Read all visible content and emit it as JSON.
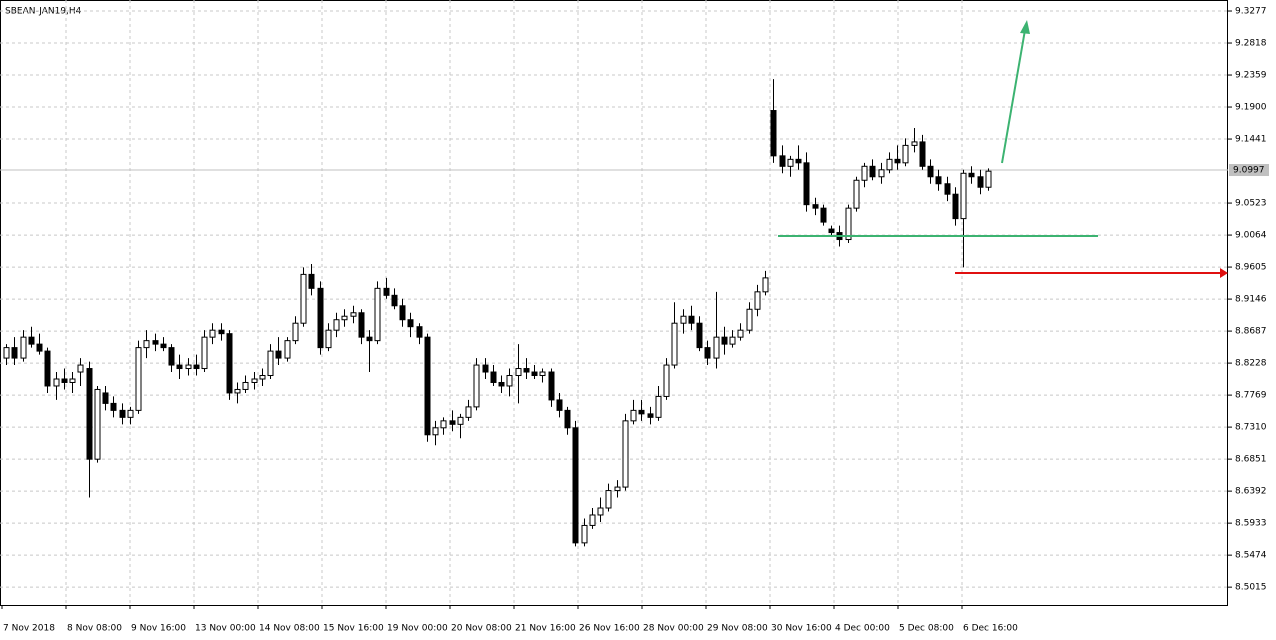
{
  "chart_data": {
    "type": "candlestick",
    "title": "SBEAN-JAN19,H4",
    "x_labels": [
      "7 Nov 2018",
      "8 Nov 08:00",
      "9 Nov 16:00",
      "13 Nov 00:00",
      "14 Nov 08:00",
      "15 Nov 16:00",
      "19 Nov 00:00",
      "20 Nov 08:00",
      "21 Nov 16:00",
      "26 Nov 16:00",
      "28 Nov 00:00",
      "29 Nov 08:00",
      "30 Nov 16:00",
      "4 Dec 00:00",
      "5 Dec 08:00",
      "6 Dec 16:00"
    ],
    "ylim": [
      8.4759,
      9.3435
    ],
    "yticks": [
      9.3277,
      9.2818,
      9.2359,
      {
        "value": 9.19,
        "label": "9.1900"
      },
      9.1441,
      9.0523,
      9.0064,
      8.9605,
      8.9146,
      8.8687,
      8.8228,
      8.7769,
      {
        "value": 8.731,
        "label": "8.7310"
      },
      8.6851,
      8.6392,
      8.5933,
      8.5474,
      8.5015
    ],
    "current_price": 9.0997,
    "grid": true,
    "up_color": "#ffffff",
    "down_color": "#000000",
    "open": [
      8.83,
      8.845,
      8.83,
      8.86,
      8.85,
      8.84,
      8.79,
      8.8,
      8.795,
      8.81,
      8.815,
      8.685,
      8.78,
      8.765,
      8.755,
      8.745,
      8.755,
      8.845,
      8.855,
      8.85,
      8.845,
      8.82,
      8.815,
      8.82,
      8.815,
      8.86,
      8.87,
      8.865,
      8.78,
      8.785,
      8.795,
      8.8,
      8.805,
      8.84,
      8.83,
      8.855,
      8.88,
      8.95,
      8.93,
      8.845,
      8.87,
      8.885,
      8.89,
      8.895,
      8.86,
      8.855,
      8.93,
      8.92,
      8.905,
      8.885,
      8.875,
      8.86,
      8.72,
      8.73,
      8.74,
      8.735,
      8.745,
      8.76,
      8.82,
      8.81,
      8.795,
      8.79,
      8.805,
      8.815,
      8.81,
      8.805,
      8.81,
      8.77,
      8.755,
      8.73,
      8.565,
      8.59,
      8.605,
      8.615,
      8.64,
      8.645,
      8.74,
      8.755,
      8.75,
      8.745,
      8.775,
      8.82,
      8.88,
      8.89,
      8.88,
      8.845,
      8.83,
      8.86,
      8.85,
      8.86,
      8.87,
      8.9,
      8.925,
      9.185,
      9.12,
      9.105,
      9.115,
      9.11,
      9.05,
      9.045,
      9.015,
      9.01,
      9.0,
      9.045,
      9.085,
      9.105,
      9.09,
      9.1,
      9.115,
      9.11,
      9.135,
      9.14,
      9.105,
      9.09,
      9.08,
      9.065,
      9.03,
      9.095,
      9.09,
      9.075
    ],
    "high": [
      8.85,
      8.86,
      8.87,
      8.875,
      8.865,
      8.845,
      8.81,
      8.815,
      8.81,
      8.83,
      8.825,
      8.79,
      8.79,
      8.775,
      8.765,
      8.76,
      8.855,
      8.87,
      8.865,
      8.86,
      8.85,
      8.835,
      8.83,
      8.835,
      8.87,
      8.88,
      8.88,
      8.87,
      8.795,
      8.805,
      8.81,
      8.815,
      8.85,
      8.86,
      8.86,
      8.89,
      8.96,
      8.965,
      8.94,
      8.88,
      8.895,
      8.9,
      8.905,
      8.9,
      8.87,
      8.94,
      8.945,
      8.93,
      8.915,
      8.895,
      8.88,
      8.865,
      8.74,
      8.745,
      8.755,
      8.75,
      8.77,
      8.83,
      8.83,
      8.82,
      8.805,
      8.815,
      8.85,
      8.83,
      8.82,
      8.815,
      8.815,
      8.78,
      8.76,
      8.74,
      8.6,
      8.615,
      8.63,
      8.65,
      8.655,
      8.75,
      8.77,
      8.77,
      8.76,
      8.79,
      8.83,
      8.91,
      8.9,
      8.905,
      8.89,
      8.855,
      8.925,
      8.875,
      8.87,
      8.88,
      8.91,
      8.935,
      8.955,
      9.23,
      9.135,
      9.12,
      9.135,
      9.125,
      9.06,
      9.05,
      9.02,
      9.02,
      9.05,
      9.09,
      9.11,
      9.115,
      9.11,
      9.125,
      9.135,
      9.145,
      9.16,
      9.15,
      9.115,
      9.1,
      9.09,
      9.075,
      9.1,
      9.105,
      9.1,
      9.102
    ],
    "low": [
      8.82,
      8.82,
      8.825,
      8.845,
      8.835,
      8.78,
      8.77,
      8.785,
      8.78,
      8.79,
      8.63,
      8.68,
      8.755,
      8.745,
      8.735,
      8.735,
      8.75,
      8.83,
      8.84,
      8.84,
      8.81,
      8.8,
      8.805,
      8.805,
      8.81,
      8.85,
      8.855,
      8.77,
      8.765,
      8.78,
      8.785,
      8.79,
      8.8,
      8.82,
      8.825,
      8.85,
      8.875,
      8.92,
      8.835,
      8.84,
      8.86,
      8.875,
      8.88,
      8.85,
      8.81,
      8.85,
      8.915,
      8.9,
      8.875,
      8.86,
      8.85,
      8.71,
      8.705,
      8.72,
      8.725,
      8.715,
      8.74,
      8.755,
      8.8,
      8.79,
      8.78,
      8.775,
      8.765,
      8.8,
      8.8,
      8.795,
      8.76,
      8.745,
      8.72,
      8.56,
      8.56,
      8.585,
      8.595,
      8.61,
      8.63,
      8.64,
      8.735,
      8.74,
      8.735,
      8.74,
      8.77,
      8.815,
      8.865,
      8.87,
      8.84,
      8.82,
      8.815,
      8.835,
      8.845,
      8.855,
      8.865,
      8.89,
      8.92,
      9.11,
      9.095,
      9.09,
      9.1,
      9.04,
      9.035,
      9.02,
      9.005,
      8.99,
      8.995,
      9.04,
      9.075,
      9.085,
      9.08,
      9.095,
      9.1,
      9.105,
      9.125,
      9.1,
      9.08,
      9.07,
      9.055,
      9.02,
      8.96,
      9.08,
      9.065,
      9.07
    ],
    "close": [
      8.845,
      8.83,
      8.86,
      8.85,
      8.84,
      8.79,
      8.8,
      8.795,
      8.8,
      8.82,
      8.685,
      8.785,
      8.765,
      8.755,
      8.745,
      8.755,
      8.845,
      8.855,
      8.85,
      8.845,
      8.82,
      8.815,
      8.82,
      8.815,
      8.86,
      8.87,
      8.865,
      8.78,
      8.785,
      8.795,
      8.8,
      8.805,
      8.84,
      8.83,
      8.855,
      8.88,
      8.95,
      8.93,
      8.845,
      8.87,
      8.885,
      8.89,
      8.895,
      8.86,
      8.855,
      8.93,
      8.92,
      8.905,
      8.885,
      8.875,
      8.86,
      8.72,
      8.73,
      8.74,
      8.735,
      8.745,
      8.76,
      8.82,
      8.81,
      8.795,
      8.79,
      8.805,
      8.815,
      8.81,
      8.805,
      8.81,
      8.77,
      8.755,
      8.73,
      8.565,
      8.59,
      8.605,
      8.615,
      8.64,
      8.645,
      8.74,
      8.755,
      8.75,
      8.745,
      8.775,
      8.82,
      8.88,
      8.89,
      8.88,
      8.845,
      8.83,
      8.86,
      8.85,
      8.86,
      8.87,
      8.9,
      8.925,
      8.945,
      9.12,
      9.105,
      9.115,
      9.11,
      9.05,
      9.045,
      9.025,
      9.01,
      9.0,
      9.045,
      9.085,
      9.105,
      9.09,
      9.1,
      9.115,
      9.11,
      9.135,
      9.14,
      9.105,
      9.09,
      9.08,
      9.065,
      9.03,
      9.095,
      9.09,
      9.075,
      9.098
    ]
  }
}
